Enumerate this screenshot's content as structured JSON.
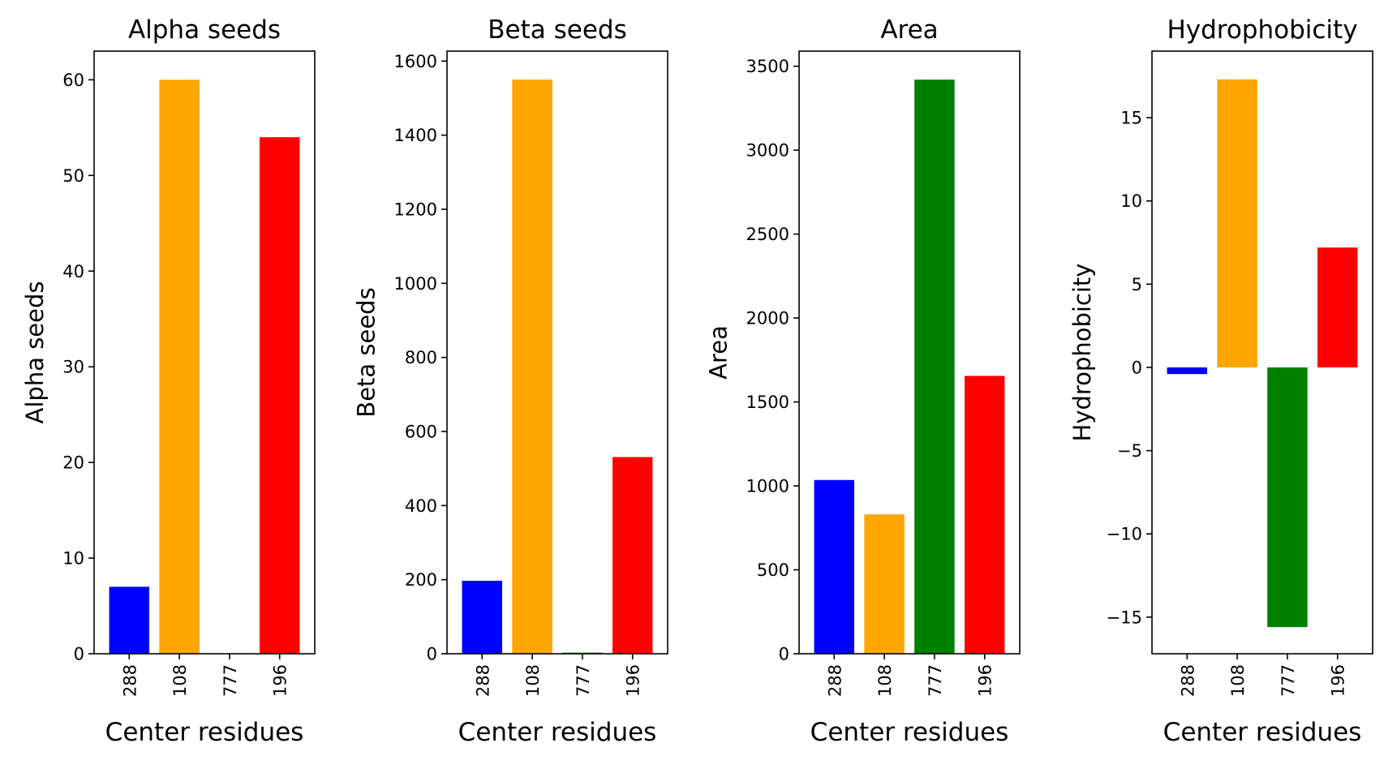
{
  "chart_data": [
    {
      "type": "bar",
      "title": "Alpha seeds",
      "xlabel": "Center residues",
      "ylabel": "Alpha seeds",
      "categories": [
        "288",
        "108",
        "777",
        "196"
      ],
      "values": [
        7,
        60,
        0,
        54
      ],
      "colors": [
        "#0000ff",
        "#ffa500",
        "#008000",
        "#ff0000"
      ],
      "ylim": [
        0,
        63
      ],
      "yticks": [
        0,
        10,
        20,
        30,
        40,
        50,
        60
      ],
      "ytick_labels": [
        "0",
        "10",
        "20",
        "30",
        "40",
        "50",
        "60"
      ],
      "grid": false
    },
    {
      "type": "bar",
      "title": "Beta seeds",
      "xlabel": "Center residues",
      "ylabel": "Beta seeds",
      "categories": [
        "288",
        "108",
        "777",
        "196"
      ],
      "values": [
        197,
        1550,
        3,
        531
      ],
      "colors": [
        "#0000ff",
        "#ffa500",
        "#008000",
        "#ff0000"
      ],
      "ylim": [
        0,
        1627
      ],
      "yticks": [
        0,
        200,
        400,
        600,
        800,
        1000,
        1200,
        1400,
        1600
      ],
      "ytick_labels": [
        "0",
        "200",
        "400",
        "600",
        "800",
        "1000",
        "1200",
        "1400",
        "1600"
      ],
      "grid": false
    },
    {
      "type": "bar",
      "title": "Area",
      "xlabel": "Center residues",
      "ylabel": "Area",
      "categories": [
        "288",
        "108",
        "777",
        "196"
      ],
      "values": [
        1035,
        830,
        3420,
        1655
      ],
      "colors": [
        "#0000ff",
        "#ffa500",
        "#008000",
        "#ff0000"
      ],
      "ylim": [
        0,
        3590
      ],
      "yticks": [
        0,
        500,
        1000,
        1500,
        2000,
        2500,
        3000,
        3500
      ],
      "ytick_labels": [
        "0",
        "500",
        "1000",
        "1500",
        "2000",
        "2500",
        "3000",
        "3500"
      ],
      "grid": false
    },
    {
      "type": "bar",
      "title": "Hydrophobicity",
      "xlabel": "Center residues",
      "ylabel": "Hydrophobicity",
      "categories": [
        "288",
        "108",
        "777",
        "196"
      ],
      "values": [
        -0.4,
        17.3,
        -15.6,
        7.2
      ],
      "colors": [
        "#0000ff",
        "#ffa500",
        "#008000",
        "#ff0000"
      ],
      "ylim": [
        -17.2,
        19.0
      ],
      "yticks": [
        -15,
        -10,
        -5,
        0,
        5,
        10,
        15
      ],
      "ytick_labels": [
        "−15",
        "−10",
        "−5",
        "0",
        "5",
        "10",
        "15"
      ],
      "grid": false
    }
  ]
}
